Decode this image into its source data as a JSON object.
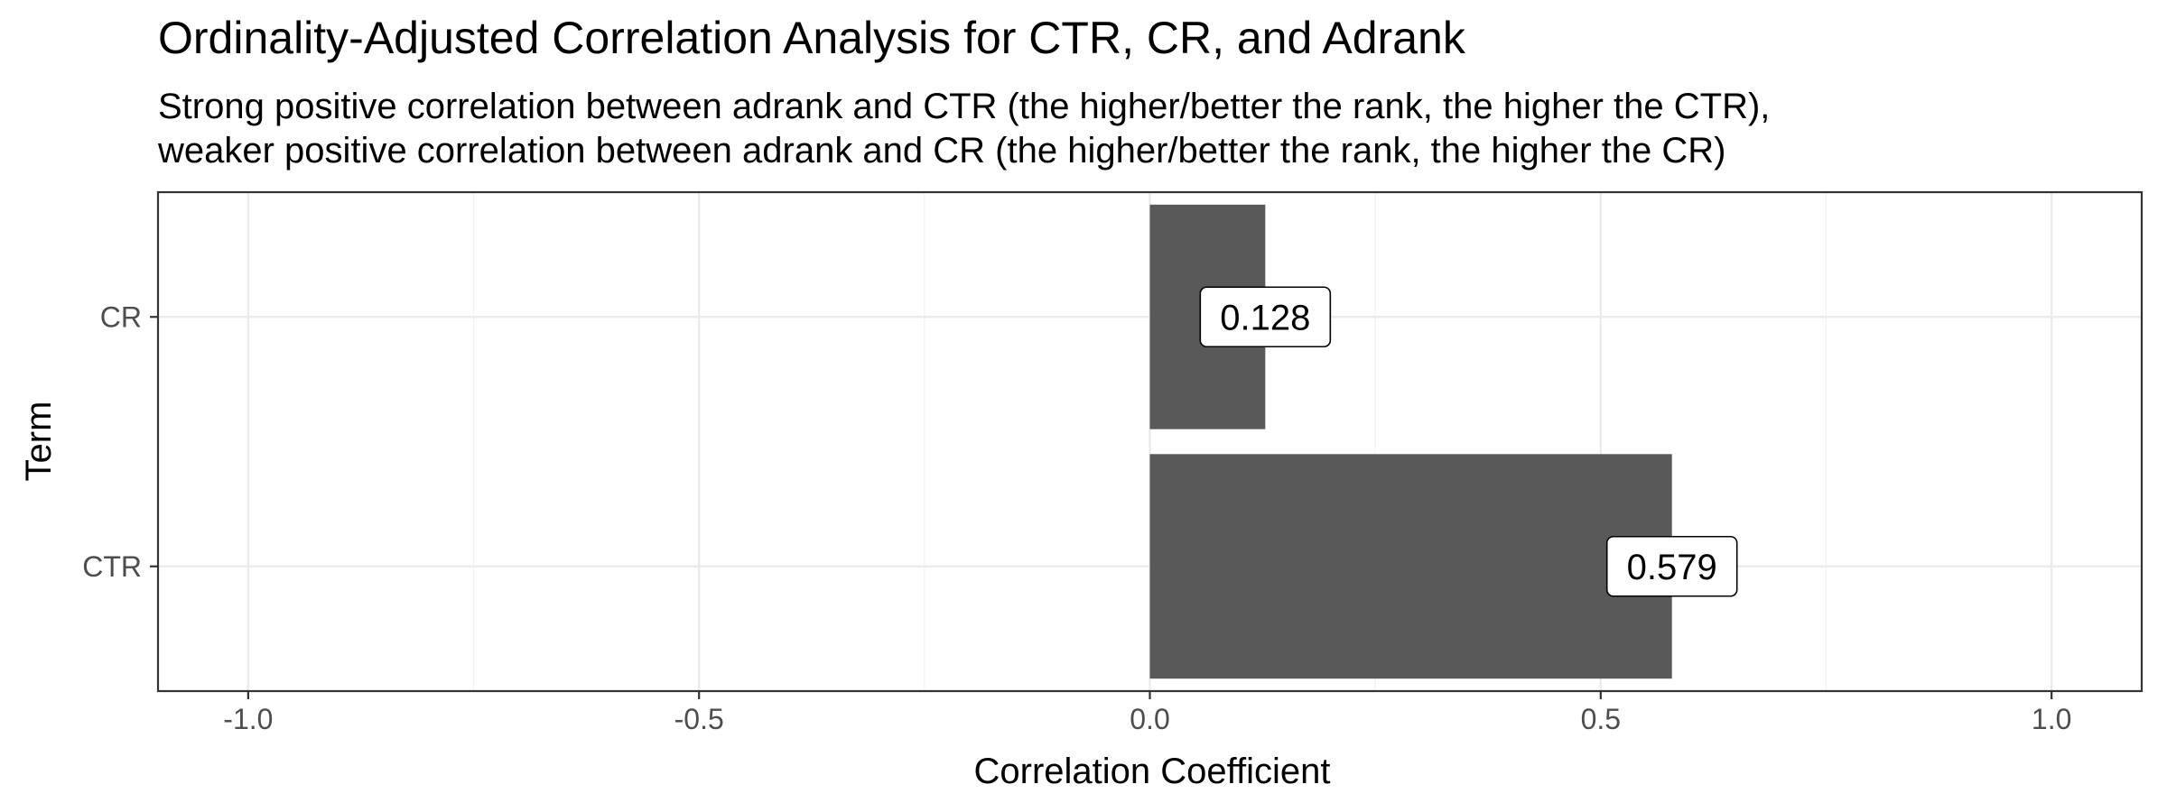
{
  "chart_data": {
    "type": "bar",
    "orientation": "horizontal",
    "title": "Ordinality-Adjusted Correlation Analysis for CTR, CR, and Adrank",
    "subtitle_lines": [
      "Strong positive correlation between adrank and CTR (the higher/better the rank, the higher the CTR),",
      "weaker positive correlation between adrank and CR  (the higher/better the rank, the higher the CR)"
    ],
    "xlabel": "Correlation Coefficient",
    "ylabel": "Term",
    "xlim": [
      -1.1,
      1.1
    ],
    "x_ticks": [
      -1.0,
      -0.5,
      0.0,
      0.5,
      1.0
    ],
    "x_tick_labels": [
      "-1.0",
      "-0.5",
      "0.0",
      "0.5",
      "1.0"
    ],
    "categories": [
      "CR",
      "CTR"
    ],
    "values": [
      0.128,
      0.579
    ],
    "data_labels": [
      "0.128",
      "0.579"
    ],
    "bar_color": "#595959",
    "grid": true,
    "panel_border": true
  }
}
